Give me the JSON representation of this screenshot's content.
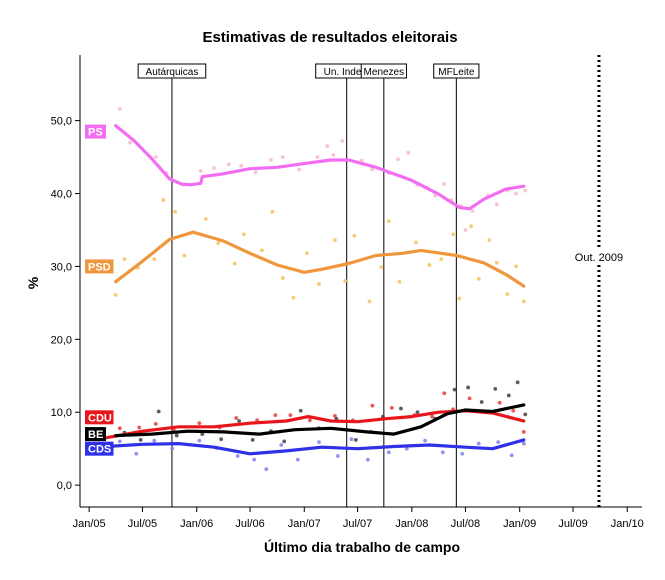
{
  "chart_data": {
    "type": "scatter",
    "title": "Estimativas de resultados eleitorais",
    "xlabel": "Último dia trabalho de campo",
    "ylabel": "%",
    "xlim": [
      "2004-12-01",
      "2010-02-20"
    ],
    "ylim": [
      -3,
      59
    ],
    "x_ticks": [
      {
        "date": "2005-01-01",
        "label": "Jan/05"
      },
      {
        "date": "2005-07-01",
        "label": "Jul/05"
      },
      {
        "date": "2006-01-01",
        "label": "Jan/06"
      },
      {
        "date": "2006-07-01",
        "label": "Jul/06"
      },
      {
        "date": "2007-01-01",
        "label": "Jan/07"
      },
      {
        "date": "2007-07-01",
        "label": "Jul/07"
      },
      {
        "date": "2008-01-01",
        "label": "Jan/08"
      },
      {
        "date": "2008-07-01",
        "label": "Jul/08"
      },
      {
        "date": "2009-01-01",
        "label": "Jan/09"
      },
      {
        "date": "2009-07-01",
        "label": "Jul/09"
      },
      {
        "date": "2010-01-01",
        "label": "Jan/10"
      }
    ],
    "y_ticks": [
      {
        "value": 0,
        "label": "0,0"
      },
      {
        "value": 10,
        "label": "10,0"
      },
      {
        "value": 20,
        "label": "20,0"
      },
      {
        "value": 30,
        "label": "30,0"
      },
      {
        "value": 40,
        "label": "40,0"
      },
      {
        "value": 50,
        "label": "50,0"
      }
    ],
    "events": [
      {
        "date": "2005-10-09",
        "label": "Autárquicas"
      },
      {
        "date": "2007-05-25",
        "label": "Un. Indep."
      },
      {
        "date": "2007-09-28",
        "label": "Menezes"
      },
      {
        "date": "2008-05-31",
        "label": "MFLeite"
      }
    ],
    "election": {
      "date": "2009-09-27",
      "label": "Out. 2009"
    },
    "series": [
      {
        "name": "PS",
        "color": "#f36df3",
        "dot_color": "#f5b8c8",
        "trend": [
          [
            "2005-04-01",
            49.3
          ],
          [
            "2005-06-01",
            47.3
          ],
          [
            "2005-08-01",
            44.8
          ],
          [
            "2005-10-01",
            42.0
          ],
          [
            "2005-11-10",
            41.3
          ],
          [
            "2005-12-10",
            41.2
          ],
          [
            "2006-01-15",
            41.4
          ],
          [
            "2006-01-20",
            42.3
          ],
          [
            "2006-04-01",
            42.7
          ],
          [
            "2006-07-01",
            43.4
          ],
          [
            "2006-10-01",
            43.6
          ],
          [
            "2007-01-01",
            44.1
          ],
          [
            "2007-04-01",
            44.6
          ],
          [
            "2007-06-01",
            44.6
          ],
          [
            "2007-09-01",
            43.6
          ],
          [
            "2008-01-01",
            41.8
          ],
          [
            "2008-04-01",
            39.9
          ],
          [
            "2008-06-10",
            38.1
          ],
          [
            "2008-07-15",
            37.9
          ],
          [
            "2008-09-01",
            39.2
          ],
          [
            "2008-11-15",
            40.6
          ],
          [
            "2009-01-15",
            41.0
          ]
        ],
        "points": [
          [
            "2005-04-15",
            51.6
          ],
          [
            "2005-05-20",
            47.0
          ],
          [
            "2005-08-15",
            45.0
          ],
          [
            "2005-09-20",
            42.8
          ],
          [
            "2005-11-15",
            41.2
          ],
          [
            "2006-01-15",
            43.1
          ],
          [
            "2006-03-01",
            43.5
          ],
          [
            "2006-04-20",
            44.0
          ],
          [
            "2006-06-01",
            43.8
          ],
          [
            "2006-07-20",
            42.9
          ],
          [
            "2006-09-10",
            44.6
          ],
          [
            "2006-10-20",
            45.0
          ],
          [
            "2006-12-15",
            43.3
          ],
          [
            "2007-02-15",
            45.0
          ],
          [
            "2007-03-20",
            46.5
          ],
          [
            "2007-04-10",
            45.3
          ],
          [
            "2007-05-10",
            47.2
          ],
          [
            "2007-07-15",
            44.5
          ],
          [
            "2007-08-20",
            43.3
          ],
          [
            "2007-10-15",
            42.8
          ],
          [
            "2007-11-15",
            44.7
          ],
          [
            "2007-12-20",
            45.6
          ],
          [
            "2008-01-20",
            41.2
          ],
          [
            "2008-02-20",
            40.8
          ],
          [
            "2008-03-20",
            39.7
          ],
          [
            "2008-04-20",
            41.3
          ],
          [
            "2008-05-15",
            39.1
          ],
          [
            "2008-06-15",
            38.3
          ],
          [
            "2008-07-01",
            35.0
          ],
          [
            "2008-07-25",
            37.6
          ],
          [
            "2008-09-15",
            39.7
          ],
          [
            "2008-10-15",
            38.5
          ],
          [
            "2008-11-20",
            40.4
          ],
          [
            "2008-12-20",
            40.0
          ],
          [
            "2009-01-20",
            40.4
          ]
        ]
      },
      {
        "name": "PSD",
        "color": "#f0963c",
        "dot_color": "#f4c25a",
        "trend": [
          [
            "2005-04-01",
            27.9
          ],
          [
            "2005-07-01",
            30.7
          ],
          [
            "2005-10-01",
            33.7
          ],
          [
            "2005-12-20",
            34.7
          ],
          [
            "2006-04-01",
            33.5
          ],
          [
            "2006-07-01",
            31.8
          ],
          [
            "2006-10-01",
            30.2
          ],
          [
            "2007-01-01",
            29.2
          ],
          [
            "2007-03-01",
            29.6
          ],
          [
            "2007-06-01",
            30.4
          ],
          [
            "2007-09-01",
            31.5
          ],
          [
            "2007-12-01",
            31.8
          ],
          [
            "2008-02-01",
            32.2
          ],
          [
            "2008-06-01",
            31.5
          ],
          [
            "2008-09-01",
            30.5
          ],
          [
            "2008-11-15",
            28.9
          ],
          [
            "2009-01-15",
            27.3
          ]
        ],
        "points": [
          [
            "2005-04-01",
            26.1
          ],
          [
            "2005-05-01",
            31.0
          ],
          [
            "2005-06-15",
            29.8
          ],
          [
            "2005-08-10",
            31.0
          ],
          [
            "2005-09-10",
            39.1
          ],
          [
            "2005-10-20",
            37.5
          ],
          [
            "2005-11-20",
            31.5
          ],
          [
            "2006-02-01",
            36.5
          ],
          [
            "2006-03-15",
            33.2
          ],
          [
            "2006-05-10",
            30.4
          ],
          [
            "2006-06-10",
            34.4
          ],
          [
            "2006-08-10",
            32.2
          ],
          [
            "2006-09-15",
            37.5
          ],
          [
            "2006-10-20",
            28.4
          ],
          [
            "2006-11-25",
            25.7
          ],
          [
            "2007-01-10",
            31.8
          ],
          [
            "2007-02-20",
            27.6
          ],
          [
            "2007-04-15",
            33.6
          ],
          [
            "2007-05-20",
            28.0
          ],
          [
            "2007-06-20",
            34.2
          ],
          [
            "2007-08-10",
            25.2
          ],
          [
            "2007-09-20",
            29.9
          ],
          [
            "2007-10-15",
            36.2
          ],
          [
            "2007-11-20",
            27.9
          ],
          [
            "2008-01-15",
            33.3
          ],
          [
            "2008-03-01",
            30.2
          ],
          [
            "2008-04-10",
            31.0
          ],
          [
            "2008-05-20",
            34.4
          ],
          [
            "2008-06-10",
            25.6
          ],
          [
            "2008-07-20",
            35.5
          ],
          [
            "2008-08-15",
            28.3
          ],
          [
            "2008-09-20",
            33.6
          ],
          [
            "2008-10-15",
            30.5
          ],
          [
            "2008-11-20",
            26.2
          ],
          [
            "2008-12-20",
            30.0
          ],
          [
            "2009-01-15",
            25.2
          ]
        ]
      },
      {
        "name": "CDU",
        "color": "#e8161b",
        "dot_color": "#e83a3a",
        "trend": [
          [
            "2005-03-01",
            6.5
          ],
          [
            "2005-07-01",
            7.4
          ],
          [
            "2005-11-01",
            8.0
          ],
          [
            "2006-03-01",
            8.0
          ],
          [
            "2006-07-01",
            8.5
          ],
          [
            "2006-11-01",
            8.8
          ],
          [
            "2007-01-15",
            9.4
          ],
          [
            "2007-04-01",
            8.8
          ],
          [
            "2007-07-01",
            8.7
          ],
          [
            "2007-10-01",
            9.1
          ],
          [
            "2008-01-01",
            9.4
          ],
          [
            "2008-04-01",
            10.0
          ],
          [
            "2008-07-01",
            10.2
          ],
          [
            "2008-10-01",
            9.9
          ],
          [
            "2009-01-15",
            8.8
          ]
        ],
        "points": [
          [
            "2005-04-15",
            7.8
          ],
          [
            "2005-06-20",
            7.9
          ],
          [
            "2005-08-15",
            8.4
          ],
          [
            "2005-10-15",
            7.6
          ],
          [
            "2006-01-10",
            8.5
          ],
          [
            "2006-03-20",
            7.9
          ],
          [
            "2006-05-15",
            9.2
          ],
          [
            "2006-07-25",
            8.9
          ],
          [
            "2006-09-25",
            9.6
          ],
          [
            "2006-11-15",
            9.6
          ],
          [
            "2007-01-20",
            8.9
          ],
          [
            "2007-04-15",
            9.5
          ],
          [
            "2007-06-15",
            8.9
          ],
          [
            "2007-08-20",
            10.9
          ],
          [
            "2007-10-25",
            10.6
          ],
          [
            "2008-01-10",
            9.6
          ],
          [
            "2008-03-10",
            9.4
          ],
          [
            "2008-04-20",
            12.6
          ],
          [
            "2008-05-20",
            10.4
          ],
          [
            "2008-07-15",
            11.9
          ],
          [
            "2008-09-10",
            10.1
          ],
          [
            "2008-10-25",
            11.3
          ],
          [
            "2008-12-10",
            10.2
          ],
          [
            "2009-01-15",
            7.3
          ]
        ]
      },
      {
        "name": "BE",
        "color": "#000000",
        "dot_color": "#404040",
        "trend": [
          [
            "2005-04-01",
            6.8
          ],
          [
            "2005-08-01",
            7.0
          ],
          [
            "2005-12-01",
            7.4
          ],
          [
            "2006-04-01",
            7.3
          ],
          [
            "2006-08-01",
            7.0
          ],
          [
            "2006-12-01",
            7.6
          ],
          [
            "2007-04-01",
            7.8
          ],
          [
            "2007-08-01",
            7.3
          ],
          [
            "2007-11-01",
            7.0
          ],
          [
            "2008-02-01",
            8.0
          ],
          [
            "2008-05-01",
            9.8
          ],
          [
            "2008-07-01",
            10.3
          ],
          [
            "2008-10-01",
            10.1
          ],
          [
            "2009-01-15",
            11.0
          ]
        ],
        "points": [
          [
            "2005-05-01",
            7.2
          ],
          [
            "2005-06-25",
            6.2
          ],
          [
            "2005-08-25",
            10.1
          ],
          [
            "2005-10-25",
            6.8
          ],
          [
            "2006-01-20",
            7.0
          ],
          [
            "2006-03-25",
            6.3
          ],
          [
            "2006-05-25",
            8.8
          ],
          [
            "2006-07-10",
            6.2
          ],
          [
            "2006-09-10",
            7.4
          ],
          [
            "2006-10-25",
            6.0
          ],
          [
            "2006-12-20",
            10.2
          ],
          [
            "2007-02-20",
            7.8
          ],
          [
            "2007-04-20",
            9.1
          ],
          [
            "2007-06-25",
            6.2
          ],
          [
            "2007-08-15",
            7.3
          ],
          [
            "2007-09-25",
            9.4
          ],
          [
            "2007-11-25",
            10.5
          ],
          [
            "2008-01-20",
            10.0
          ],
          [
            "2008-03-20",
            9.1
          ],
          [
            "2008-05-25",
            13.1
          ],
          [
            "2008-07-10",
            13.4
          ],
          [
            "2008-08-25",
            11.4
          ],
          [
            "2008-10-10",
            13.2
          ],
          [
            "2008-11-25",
            12.3
          ],
          [
            "2008-12-25",
            14.1
          ],
          [
            "2009-01-20",
            9.7
          ]
        ]
      },
      {
        "name": "CDS",
        "color": "#3030e8",
        "dot_color": "#8080f0",
        "trend": [
          [
            "2005-03-01",
            5.3
          ],
          [
            "2005-07-01",
            5.6
          ],
          [
            "2005-11-01",
            5.7
          ],
          [
            "2006-03-01",
            5.2
          ],
          [
            "2006-07-01",
            4.3
          ],
          [
            "2006-11-01",
            4.7
          ],
          [
            "2007-03-01",
            5.2
          ],
          [
            "2007-07-01",
            5.0
          ],
          [
            "2007-11-01",
            5.3
          ],
          [
            "2008-03-01",
            5.5
          ],
          [
            "2008-07-01",
            5.2
          ],
          [
            "2008-10-01",
            5.0
          ],
          [
            "2009-01-15",
            6.2
          ]
        ],
        "points": [
          [
            "2005-04-15",
            6.0
          ],
          [
            "2005-06-10",
            4.3
          ],
          [
            "2005-08-10",
            6.1
          ],
          [
            "2005-10-10",
            5.0
          ],
          [
            "2006-01-10",
            6.1
          ],
          [
            "2006-03-10",
            5.1
          ],
          [
            "2006-05-20",
            4.0
          ],
          [
            "2006-07-15",
            3.5
          ],
          [
            "2006-08-25",
            2.2
          ],
          [
            "2006-10-15",
            5.5
          ],
          [
            "2006-12-10",
            3.5
          ],
          [
            "2007-02-20",
            5.9
          ],
          [
            "2007-04-25",
            4.0
          ],
          [
            "2007-06-10",
            6.3
          ],
          [
            "2007-08-05",
            3.5
          ],
          [
            "2007-10-15",
            4.5
          ],
          [
            "2007-12-15",
            5.0
          ],
          [
            "2008-02-15",
            6.1
          ],
          [
            "2008-04-15",
            4.5
          ],
          [
            "2008-06-20",
            4.3
          ],
          [
            "2008-08-15",
            5.7
          ],
          [
            "2008-10-20",
            5.9
          ],
          [
            "2008-12-05",
            4.1
          ],
          [
            "2009-01-15",
            5.7
          ]
        ]
      }
    ],
    "series_labels": [
      {
        "series": "PS",
        "text": "PS",
        "value": 48.5
      },
      {
        "series": "PSD",
        "text": "PSD",
        "value": 30.0
      },
      {
        "series": "CDU",
        "text": "CDU",
        "value": 9.3
      },
      {
        "series": "BE",
        "text": "BE",
        "value": 7.0
      },
      {
        "series": "CDS",
        "text": "CDS",
        "value": 5.0
      }
    ],
    "grid": false,
    "legend": "none"
  }
}
